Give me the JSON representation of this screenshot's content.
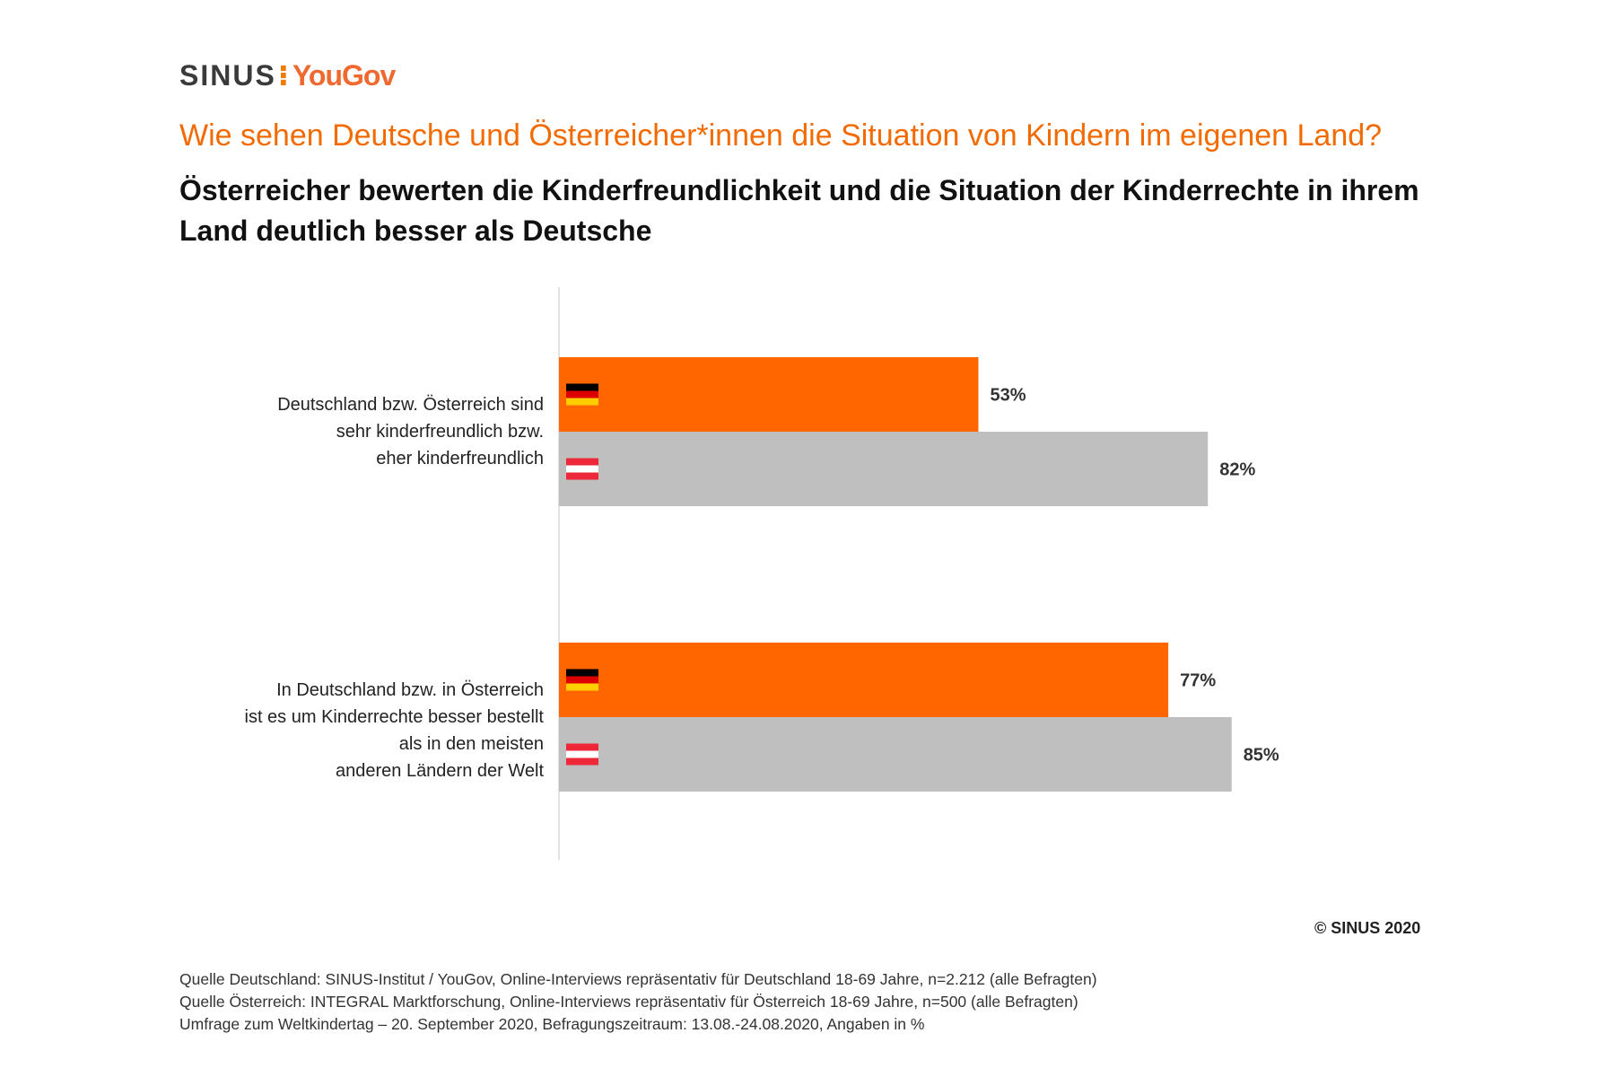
{
  "logo": {
    "sinus": "SINUS",
    "separator": "⁝",
    "yougov": "YouGov"
  },
  "question": "Wie sehen Deutsche und Österreicher*innen die Situation von Kindern im eigenen Land?",
  "headline": "Österreicher bewerten die Kinderfreundlichkeit und die Situation der Kinderrechte in ihrem Land deutlich besser als Deutsche",
  "chart_data": {
    "type": "bar",
    "orientation": "horizontal",
    "unit": "%",
    "categories": [
      "Deutschland bzw. Österreich sind\nsehr kinderfreundlich bzw.\neher kinderfreundlich",
      "In Deutschland bzw. in Österreich\nist es um Kinderrechte besser bestellt\nals in den meisten\nanderen Ländern der Welt"
    ],
    "series": [
      {
        "name": "Deutschland",
        "flag": "de",
        "color": "#ff6600",
        "values": [
          53,
          77
        ],
        "labels": [
          "53%",
          "77%"
        ]
      },
      {
        "name": "Österreich",
        "flag": "at",
        "color": "#bfbfbf",
        "values": [
          82,
          85
        ],
        "labels": [
          "82%",
          "85%"
        ]
      }
    ],
    "xlim": [
      0,
      100
    ],
    "legend": "none",
    "grid": false
  },
  "flag_colors": {
    "de": [
      "#000000",
      "#dd0000",
      "#ffce00"
    ],
    "at": [
      "#ed2939",
      "#ffffff",
      "#ed2939"
    ]
  },
  "copyright": "© SINUS 2020",
  "sources": [
    "Quelle Deutschland: SINUS-Institut / YouGov, Online-Interviews repräsentativ für Deutschland 18-69 Jahre, n=2.212 (alle Befragten)",
    "Quelle Österreich: INTEGRAL Marktforschung, Online-Interviews repräsentativ für Österreich 18-69 Jahre, n=500 (alle Befragten)",
    "Umfrage zum Weltkindertag – 20. September 2020, Befragungszeitraum: 13.08.-24.08.2020, Angaben in %"
  ]
}
